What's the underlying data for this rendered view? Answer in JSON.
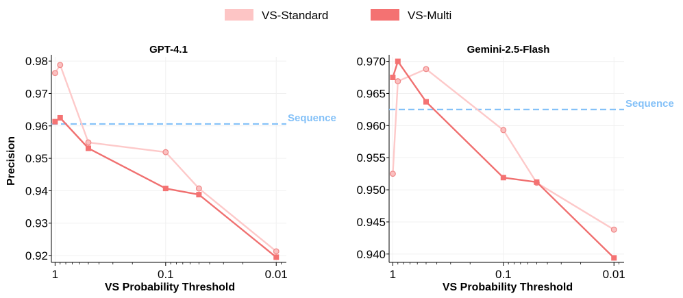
{
  "legend": [
    {
      "label": "VS-Standard",
      "color": "#fdc5c5"
    },
    {
      "label": "VS-Multi",
      "color": "#f47272"
    }
  ],
  "colors": {
    "standard_line": "#fdc9c9",
    "standard_marker_fill": "#fbc0c0",
    "standard_marker_stroke": "#ef8a8a",
    "multi_line": "#f07070",
    "multi_marker": "#f47272",
    "sequence": "#84c1f8",
    "axis": "#000000"
  },
  "chart_data": [
    {
      "type": "line",
      "title": "GPT-4.1",
      "xlabel": "VS Probability Threshold",
      "ylabel": "Precision",
      "xscale": "log",
      "xlim": [
        1.08,
        0.0081
      ],
      "ylim": [
        0.9179,
        0.9813
      ],
      "xticks": [
        1,
        0.1,
        0.01
      ],
      "xtick_labels": [
        "1",
        "0.1",
        "0.01"
      ],
      "yticks": [
        0.92,
        0.93,
        0.94,
        0.95,
        0.96,
        0.97,
        0.98
      ],
      "ytick_labels": [
        "0.92",
        "0.93",
        "0.94",
        "0.95",
        "0.96",
        "0.97",
        "0.98"
      ],
      "series": [
        {
          "name": "VS-Standard",
          "x": [
            1.0,
            0.9,
            0.5,
            0.1,
            0.05,
            0.01
          ],
          "y": [
            0.9763,
            0.9788,
            0.9549,
            0.9519,
            0.9407,
            0.9213
          ],
          "marker": "circle"
        },
        {
          "name": "VS-Multi",
          "x": [
            1.0,
            0.9,
            0.5,
            0.1,
            0.05,
            0.01
          ],
          "y": [
            0.9613,
            0.9625,
            0.9531,
            0.9407,
            0.9388,
            0.9195
          ],
          "marker": "square"
        }
      ],
      "reference_line": {
        "label": "Sequence",
        "y": 0.9606
      }
    },
    {
      "type": "line",
      "title": "Gemini-2.5-Flash",
      "xlabel": "VS Probability Threshold",
      "ylabel": "",
      "xscale": "log",
      "xlim": [
        1.08,
        0.0081
      ],
      "ylim": [
        0.9387,
        0.9707
      ],
      "xticks": [
        1,
        0.1,
        0.01
      ],
      "xtick_labels": [
        "1",
        "0.1",
        "0.01"
      ],
      "yticks": [
        0.94,
        0.945,
        0.95,
        0.955,
        0.96,
        0.965,
        0.97
      ],
      "ytick_labels": [
        "0.940",
        "0.945",
        "0.950",
        "0.955",
        "0.960",
        "0.965",
        "0.970"
      ],
      "series": [
        {
          "name": "VS-Standard",
          "x": [
            1.0,
            0.9,
            0.5,
            0.1,
            0.05,
            0.01
          ],
          "y": [
            0.9525,
            0.9669,
            0.9688,
            0.9593,
            0.9511,
            0.9438
          ],
          "marker": "circle"
        },
        {
          "name": "VS-Multi",
          "x": [
            1.0,
            0.9,
            0.5,
            0.1,
            0.05,
            0.01
          ],
          "y": [
            0.9675,
            0.97,
            0.9637,
            0.9519,
            0.9512,
            0.9394
          ],
          "marker": "square"
        }
      ],
      "reference_line": {
        "label": "Sequence",
        "y": 0.9625
      }
    }
  ]
}
